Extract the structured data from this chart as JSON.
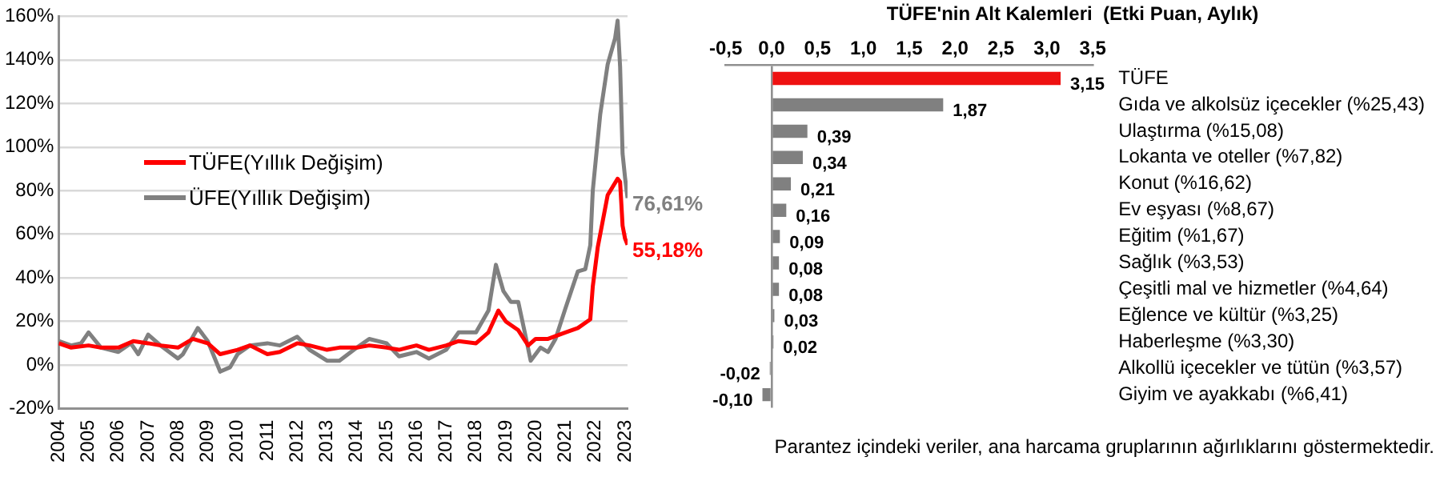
{
  "chart_data": [
    {
      "type": "line",
      "xlim": [
        "2004-01",
        "2023-02"
      ],
      "ylim": [
        -20,
        160
      ],
      "grid": "y",
      "legend": "center",
      "xticks": [
        {
          "value": "2004",
          "label": "2004"
        },
        {
          "value": "2005",
          "label": "2005"
        },
        {
          "value": "2006",
          "label": "2006"
        },
        {
          "value": "2007",
          "label": "2007"
        },
        {
          "value": "2008",
          "label": "2008"
        },
        {
          "value": "2009",
          "label": "2009"
        },
        {
          "value": "2010",
          "label": "2010"
        },
        {
          "value": "2011",
          "label": "2011"
        },
        {
          "value": "2012",
          "label": "2012"
        },
        {
          "value": "2013",
          "label": "2013"
        },
        {
          "value": "2014",
          "label": "2014"
        },
        {
          "value": "2015",
          "label": "2015"
        },
        {
          "value": "2016",
          "label": "2016"
        },
        {
          "value": "2017",
          "label": "2017"
        },
        {
          "value": "2018",
          "label": "2018"
        },
        {
          "value": "2019",
          "label": "2019"
        },
        {
          "value": "2020",
          "label": "2020"
        },
        {
          "value": "2021",
          "label": "2021"
        },
        {
          "value": "2022",
          "label": "2022"
        },
        {
          "value": "2023",
          "label": "2023"
        }
      ],
      "yticks": [
        {
          "value": -20,
          "label": "-20%"
        },
        {
          "value": 0,
          "label": "0%"
        },
        {
          "value": 20,
          "label": "20%"
        },
        {
          "value": 40,
          "label": "40%"
        },
        {
          "value": 60,
          "label": "60%"
        },
        {
          "value": 80,
          "label": "80%"
        },
        {
          "value": 100,
          "label": "100%"
        },
        {
          "value": 120,
          "label": "120%"
        },
        {
          "value": 140,
          "label": "140%"
        },
        {
          "value": 160,
          "label": "160%"
        }
      ],
      "series": [
        {
          "name": "TÜFE(Yıllık Değişim)",
          "color": "#ff0000",
          "x": [
            "2004-01",
            "2004-06",
            "2005-01",
            "2005-06",
            "2006-01",
            "2006-07",
            "2007-01",
            "2007-06",
            "2008-01",
            "2008-07",
            "2009-01",
            "2009-06",
            "2010-01",
            "2010-06",
            "2011-01",
            "2011-06",
            "2012-01",
            "2012-06",
            "2013-01",
            "2013-06",
            "2014-01",
            "2014-06",
            "2015-01",
            "2015-06",
            "2016-01",
            "2016-06",
            "2017-01",
            "2017-06",
            "2018-01",
            "2018-06",
            "2018-10",
            "2019-01",
            "2019-06",
            "2019-10",
            "2020-01",
            "2020-06",
            "2021-01",
            "2021-06",
            "2021-11",
            "2021-12",
            "2022-02",
            "2022-06",
            "2022-10",
            "2022-11",
            "2022-12",
            "2023-01",
            "2023-02"
          ],
          "values": [
            10,
            8,
            9,
            8,
            8,
            11,
            10,
            9,
            8,
            12,
            10,
            5,
            7,
            9,
            5,
            6,
            10,
            9,
            7,
            8,
            8,
            9,
            8,
            7,
            9,
            7,
            9,
            11,
            10,
            15,
            25,
            20,
            16,
            9,
            12,
            12,
            15,
            17,
            21,
            36,
            54,
            78,
            85.5,
            84,
            64,
            58,
            55.18
          ]
        },
        {
          "name": "ÜFE(Yıllık Değişim)",
          "color": "#808080",
          "x": [
            "2004-01",
            "2004-06",
            "2004-10",
            "2005-01",
            "2005-06",
            "2006-01",
            "2006-06",
            "2006-09",
            "2007-01",
            "2007-06",
            "2008-01",
            "2008-03",
            "2008-09",
            "2009-01",
            "2009-06",
            "2009-10",
            "2010-01",
            "2010-06",
            "2011-01",
            "2011-06",
            "2012-01",
            "2012-06",
            "2013-01",
            "2013-06",
            "2014-01",
            "2014-06",
            "2015-01",
            "2015-06",
            "2016-01",
            "2016-06",
            "2017-01",
            "2017-06",
            "2018-01",
            "2018-06",
            "2018-09",
            "2018-12",
            "2019-03",
            "2019-06",
            "2019-09",
            "2019-11",
            "2020-03",
            "2020-06",
            "2020-09",
            "2021-01",
            "2021-06",
            "2021-09",
            "2021-11",
            "2021-12",
            "2022-03",
            "2022-06",
            "2022-09",
            "2022-10",
            "2022-11",
            "2022-12",
            "2023-01",
            "2023-02"
          ],
          "values": [
            11,
            9,
            10,
            15,
            8,
            6,
            10,
            5,
            14,
            9,
            3,
            5,
            17,
            11,
            -3,
            -1,
            5,
            9,
            10,
            9,
            13,
            7,
            2,
            2,
            8,
            12,
            10,
            4,
            6,
            3,
            7,
            15,
            15,
            25,
            46,
            34,
            29,
            29,
            13,
            2,
            8,
            6,
            12,
            26,
            43,
            44,
            55,
            80,
            115,
            138,
            150,
            158,
            137,
            97,
            86,
            76.61
          ]
        }
      ],
      "annotations": [
        {
          "text": "76,61%",
          "x": "2023-02",
          "y": 76.61
        },
        {
          "text": "55,18%",
          "x": "2023-02",
          "y": 55.18
        }
      ]
    },
    {
      "type": "bar",
      "orientation": "horizontal",
      "title": "TÜFE'nin Alt Kalemleri  (Etki Puan, Aylık)",
      "categories": [
        "TÜFE",
        "Gıda ve alkolsüz içecekler (%25,43)",
        "Ulaştırma (%15,08)",
        "Lokanta ve oteller (%7,82)",
        "Konut (%16,62)",
        "Ev eşyası (%8,67)",
        "Eğitim (%1,67)",
        "Sağlık (%3,53)",
        "Çeşitli mal ve hizmetler (%4,64)",
        "Eğlence ve kültür (%3,25)",
        "Haberleşme (%3,30)",
        "Alkollü içecekler ve tütün (%3,57)",
        "Giyim ve ayakkabı (%6,41)"
      ],
      "xlim": [
        -0.5,
        3.5
      ],
      "xticks": [
        {
          "value": -0.5,
          "label": "-0,5"
        },
        {
          "value": 0,
          "label": "0,0"
        },
        {
          "value": 0.5,
          "label": "0,5"
        },
        {
          "value": 1,
          "label": "1,0"
        },
        {
          "value": 1.5,
          "label": "1,5"
        },
        {
          "value": 2,
          "label": "2,0"
        },
        {
          "value": 2.5,
          "label": "2,5"
        },
        {
          "value": 3,
          "label": "3,0"
        },
        {
          "value": 3.5,
          "label": "3,5"
        }
      ],
      "series": [
        {
          "values": [
            3.15,
            1.87,
            0.39,
            0.34,
            0.21,
            0.16,
            0.09,
            0.08,
            0.08,
            0.03,
            0.02,
            -0.02,
            -0.1
          ],
          "colors": [
            "#ee1111",
            "#808080",
            "#808080",
            "#808080",
            "#808080",
            "#808080",
            "#808080",
            "#808080",
            "#808080",
            "#808080",
            "#808080",
            "#808080",
            "#808080"
          ],
          "value_labels": [
            "3,15",
            "1,87",
            "0,39",
            "0,34",
            "0,21",
            "0,16",
            "0,09",
            "0,08",
            "0,08",
            "0,03",
            "0,02",
            "-0,02",
            "-0,10"
          ]
        }
      ],
      "annotations": [
        "Parantez içindeki veriler, ana harcama gruplarının ağırlıklarını göstermektedir."
      ]
    }
  ]
}
